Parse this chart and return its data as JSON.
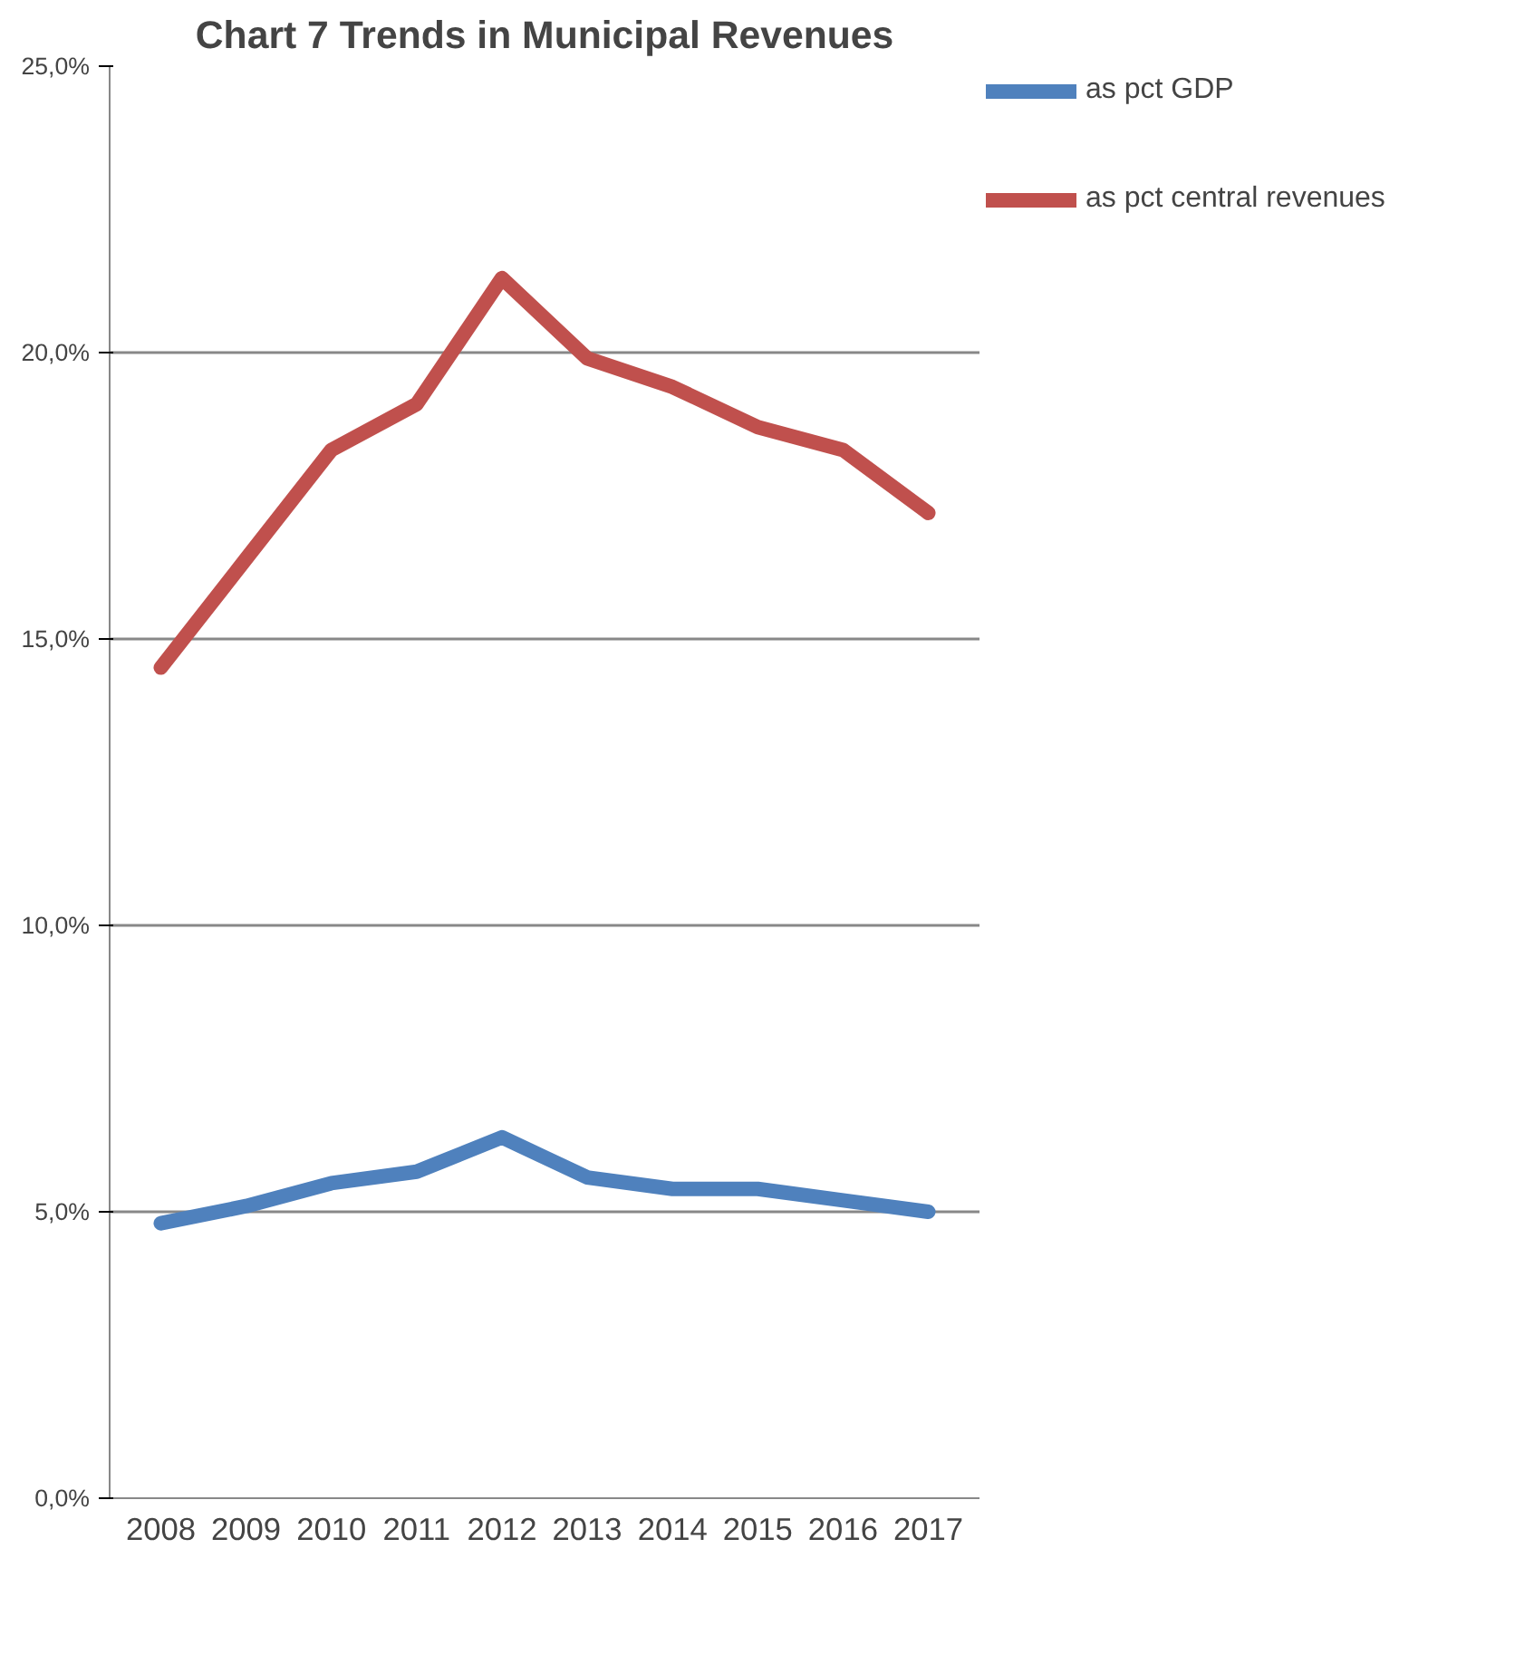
{
  "chart_data": {
    "type": "line",
    "title": "Chart 7 Trends in Municipal Revenues",
    "categories": [
      "2008",
      "2009",
      "2010",
      "2011",
      "2012",
      "2013",
      "2014",
      "2015",
      "2016",
      "2017"
    ],
    "series": [
      {
        "name": "as pct GDP",
        "color": "#4f81bd",
        "values": [
          4.8,
          5.1,
          5.5,
          5.7,
          6.3,
          5.6,
          5.4,
          5.4,
          5.2,
          5.0
        ]
      },
      {
        "name": "as pct central revenues",
        "color": "#c0504d",
        "values": [
          14.5,
          16.4,
          18.3,
          19.1,
          21.3,
          19.9,
          19.4,
          18.7,
          18.3,
          17.2
        ]
      }
    ],
    "ylim": [
      0,
      25
    ],
    "yticks": [
      {
        "value": 0,
        "label": "0,0%"
      },
      {
        "value": 5,
        "label": "5,0%"
      },
      {
        "value": 10,
        "label": "10,0%"
      },
      {
        "value": 15,
        "label": "15,0%"
      },
      {
        "value": 20,
        "label": "20,0%"
      },
      {
        "value": 25,
        "label": "25,0%"
      }
    ],
    "grid": "y",
    "legend": "right",
    "marker": "none",
    "line_style": "solid"
  }
}
